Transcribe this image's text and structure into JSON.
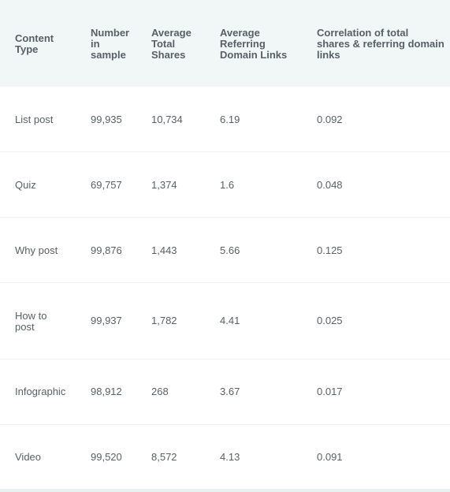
{
  "headers": [
    "Content\nType",
    "Number\nin\nsample",
    "Average\nTotal\nShares",
    "Average\nReferring\nDomain Links",
    "Correlation of total\nshares & referring domain\nlinks"
  ],
  "rows": [
    [
      "List post",
      "99,935",
      "10,734",
      "6.19",
      "0.092"
    ],
    [
      "Quiz",
      "69,757",
      "1,374",
      "1.6",
      "0.048"
    ],
    [
      "Why post",
      "99,876",
      "1,443",
      "5.66",
      "0.125"
    ],
    [
      "How to\npost",
      "99,937",
      "1,782",
      "4.41",
      "0.025"
    ],
    [
      "Infographic",
      "98,912",
      "268",
      "3.67",
      "0.017"
    ],
    [
      "Video",
      "99,520",
      "8,572",
      "4.13",
      "0.091"
    ]
  ]
}
